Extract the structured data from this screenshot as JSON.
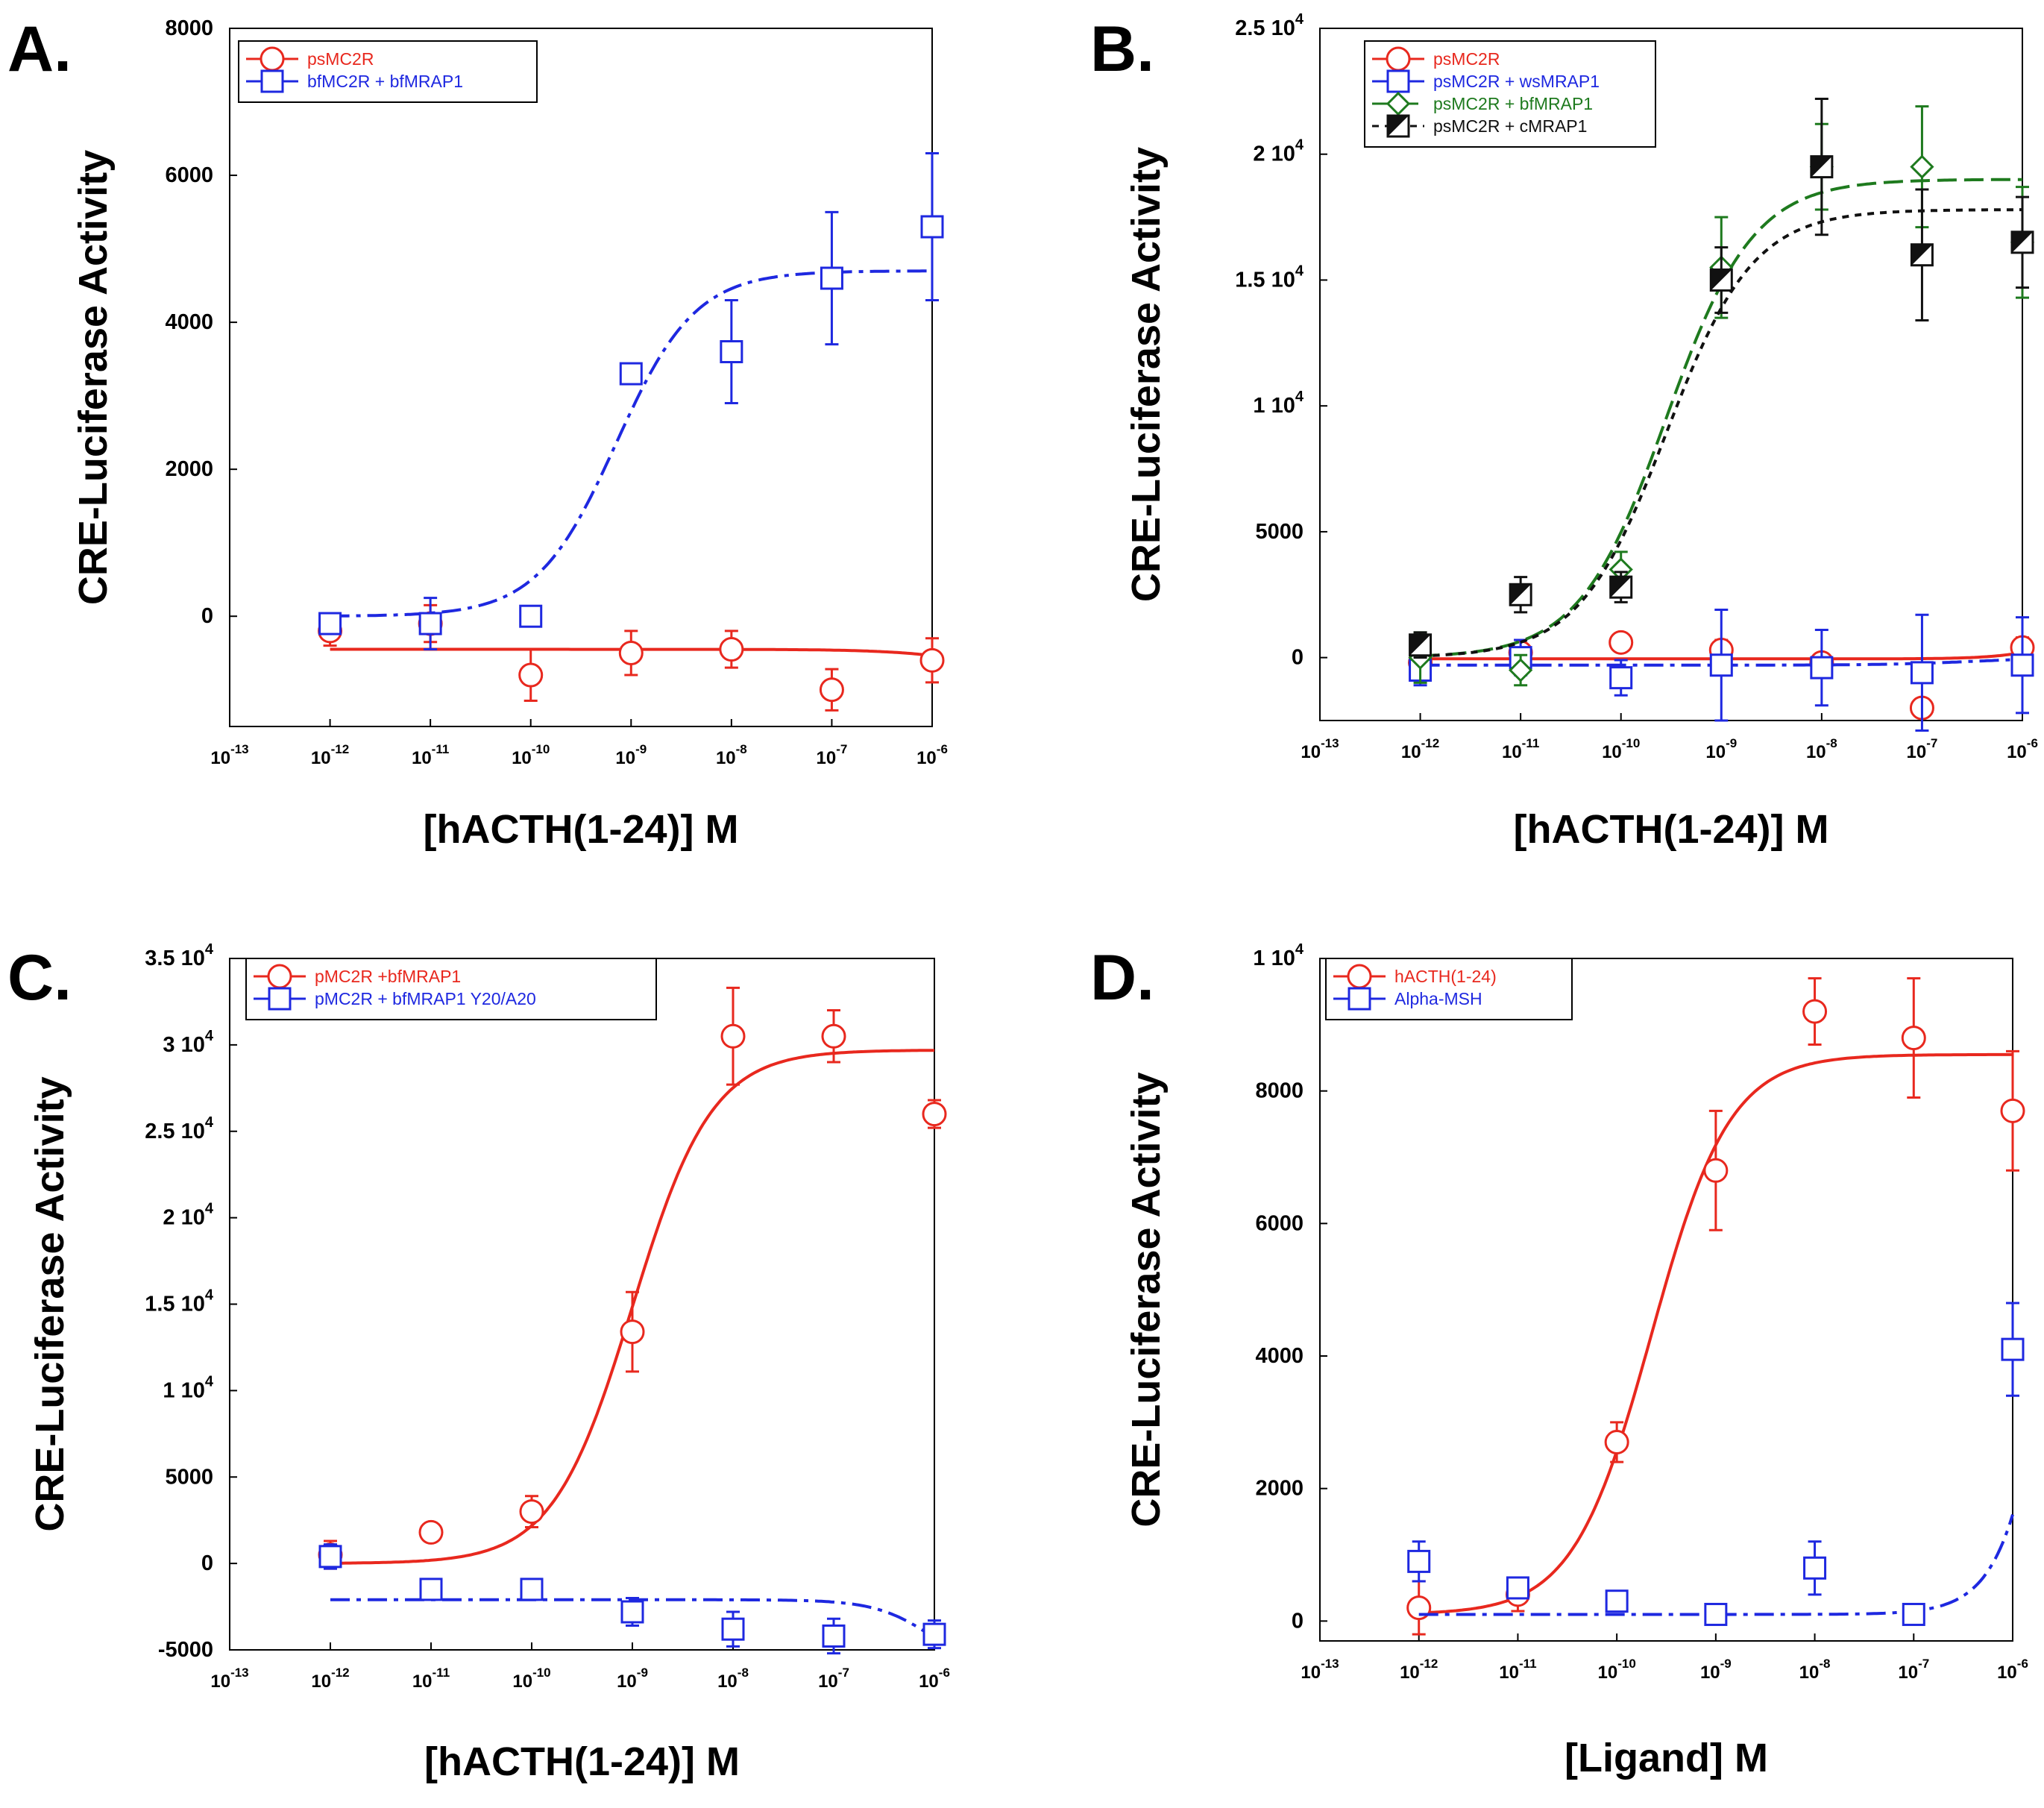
{
  "chart_data": [
    {
      "type": "scatter",
      "panel_label": "A.",
      "xlabel": "[hACTH(1-24)] M",
      "ylabel": "CRE-Luciferase Activity",
      "xlim": [
        -13,
        -6
      ],
      "ylim": [
        -1500,
        8000
      ],
      "x_ticks": [
        -13,
        -12,
        -11,
        -10,
        -9,
        -8,
        -7,
        -6
      ],
      "y_ticks": [
        {
          "v": 0,
          "label": "0"
        },
        {
          "v": 2000,
          "label": "2000"
        },
        {
          "v": 4000,
          "label": "4000"
        },
        {
          "v": 6000,
          "label": "6000"
        },
        {
          "v": 8000,
          "label": "8000"
        }
      ],
      "series": [
        {
          "name": "psMC2R",
          "color": "#e8281e",
          "marker": "circle",
          "dash": "solid",
          "x": [
            -12,
            -11,
            -10,
            -9,
            -8,
            -7,
            -6
          ],
          "y": [
            -200,
            -100,
            -800,
            -500,
            -450,
            -1000,
            -600
          ],
          "err": [
            200,
            250,
            350,
            300,
            250,
            280,
            300
          ],
          "fit": {
            "bottom": -450,
            "top": -800,
            "logec50": -5.5,
            "hill": 1
          }
        },
        {
          "name": "bfMC2R + bfMRAP1",
          "color": "#1e28e0",
          "marker": "square",
          "dash": "dashdot",
          "x": [
            -12,
            -11,
            -10,
            -9,
            -8,
            -7,
            -6
          ],
          "y": [
            -100,
            -100,
            0,
            3300,
            3600,
            4600,
            5300
          ],
          "err": [
            80,
            350,
            60,
            100,
            700,
            900,
            1000
          ],
          "fit": {
            "bottom": 0,
            "top": 4700,
            "logec50": -9.15,
            "hill": 1.1
          }
        }
      ],
      "legend_position": "top-left"
    },
    {
      "type": "scatter",
      "panel_label": "B.",
      "xlabel": "[hACTH(1-24)] M",
      "ylabel": "CRE-Luciferase Activity",
      "xlim": [
        -13,
        -6
      ],
      "ylim": [
        -2500,
        25000
      ],
      "x_ticks": [
        -13,
        -12,
        -11,
        -10,
        -9,
        -8,
        -7,
        -6
      ],
      "y_ticks": [
        {
          "v": 0,
          "label": "0"
        },
        {
          "v": 5000,
          "label": "5000"
        },
        {
          "v": 10000,
          "label": "1 10"
        },
        {
          "v": 15000,
          "label": "1.5 10"
        },
        {
          "v": 20000,
          "label": "2 10"
        },
        {
          "v": 25000,
          "label": "2.5 10"
        }
      ],
      "series": [
        {
          "name": "psMC2R",
          "color": "#e8281e",
          "marker": "circle",
          "dash": "solid",
          "x": [
            -12,
            -11,
            -10,
            -9,
            -8,
            -7,
            -6
          ],
          "y": [
            -200,
            200,
            600,
            300,
            -200,
            -2000,
            400
          ],
          "err": [
            300,
            500,
            300,
            400,
            300,
            300,
            400
          ],
          "fit": {
            "bottom": -50,
            "top": 1200,
            "logec50": -5.6,
            "hill": 1.5
          }
        },
        {
          "name": "psMC2R + wsMRAP1",
          "color": "#1e28e0",
          "marker": "square",
          "dash": "dashdot",
          "x": [
            -12,
            -11,
            -10,
            -9,
            -8,
            -7,
            -6
          ],
          "y": [
            -500,
            0,
            -800,
            -300,
            -400,
            -600,
            -300
          ],
          "err": [
            600,
            700,
            700,
            2200,
            1500,
            2300,
            1900
          ],
          "fit": {
            "bottom": -300,
            "top": 0,
            "logec50": -6.5,
            "hill": 1
          }
        },
        {
          "name": "psMC2R + bfMRAP1",
          "color": "#1e7a1e",
          "marker": "diamond",
          "dash": "dash",
          "x": [
            -12,
            -11,
            -10,
            -9,
            -8,
            -7,
            -6
          ],
          "y": [
            0,
            -500,
            3500,
            15500,
            19500,
            19500,
            16500
          ],
          "err": [
            1000,
            600,
            700,
            2000,
            1700,
            2400,
            2200
          ],
          "fit": {
            "bottom": 0,
            "top": 19000,
            "logec50": -9.55,
            "hill": 1
          }
        },
        {
          "name": "psMC2R + cMRAP1",
          "color": "#111111",
          "marker": "halfsquare",
          "dash": "dot",
          "x": [
            -12,
            -11,
            -10,
            -9,
            -8,
            -7,
            -6
          ],
          "y": [
            500,
            2500,
            2800,
            15000,
            19500,
            16000,
            16500
          ],
          "err": [
            500,
            700,
            600,
            1300,
            2700,
            2600,
            1800
          ],
          "fit": {
            "bottom": 0,
            "top": 17800,
            "logec50": -9.55,
            "hill": 1
          }
        }
      ],
      "legend_position": "top-left"
    },
    {
      "type": "scatter",
      "panel_label": "C.",
      "xlabel": "[hACTH(1-24)] M",
      "ylabel": "CRE-Luciferase Activity",
      "xlim": [
        -13,
        -6
      ],
      "ylim": [
        -5000,
        35000
      ],
      "x_ticks": [
        -13,
        -12,
        -11,
        -10,
        -9,
        -8,
        -7,
        -6
      ],
      "y_ticks": [
        {
          "v": -5000,
          "label": "-5000"
        },
        {
          "v": 0,
          "label": "0"
        },
        {
          "v": 5000,
          "label": "5000"
        },
        {
          "v": 10000,
          "label": "1 10"
        },
        {
          "v": 15000,
          "label": "1.5 10"
        },
        {
          "v": 20000,
          "label": "2 10"
        },
        {
          "v": 25000,
          "label": "2.5 10"
        },
        {
          "v": 30000,
          "label": "3 10"
        },
        {
          "v": 35000,
          "label": "3.5 10"
        }
      ],
      "series": [
        {
          "name": "pMC2R +bfMRAP1",
          "color": "#e8281e",
          "marker": "circle",
          "dash": "solid",
          "x": [
            -12,
            -11,
            -10,
            -9,
            -8,
            -7,
            -6
          ],
          "y": [
            500,
            1800,
            3000,
            13400,
            30500,
            30500,
            26000
          ],
          "err": [
            800,
            500,
            900,
            2300,
            2800,
            1500,
            800
          ],
          "fit": {
            "bottom": 0,
            "top": 29700,
            "logec50": -9.0,
            "hill": 1.1
          }
        },
        {
          "name": "pMC2R + bfMRAP1 Y20/A20",
          "color": "#1e28e0",
          "marker": "square",
          "dash": "dashdot",
          "x": [
            -12,
            -11,
            -10,
            -9,
            -8,
            -7,
            -6
          ],
          "y": [
            400,
            -1500,
            -1500,
            -2800,
            -3800,
            -4200,
            -4100
          ],
          "err": [
            700,
            600,
            600,
            800,
            1000,
            1000,
            800
          ],
          "fit": {
            "bottom": -2100,
            "top": -6500,
            "logec50": -6.0,
            "hill": 1.5
          }
        }
      ],
      "legend_position": "top-left"
    },
    {
      "type": "scatter",
      "panel_label": "D.",
      "xlabel": "[Ligand] M",
      "ylabel": "CRE-Luciferase Activity",
      "xlim": [
        -13,
        -6
      ],
      "ylim": [
        -300,
        10000
      ],
      "x_ticks": [
        -13,
        -12,
        -11,
        -10,
        -9,
        -8,
        -7,
        -6
      ],
      "y_ticks": [
        {
          "v": 0,
          "label": "0"
        },
        {
          "v": 2000,
          "label": "2000"
        },
        {
          "v": 4000,
          "label": "4000"
        },
        {
          "v": 6000,
          "label": "6000"
        },
        {
          "v": 8000,
          "label": "8000"
        },
        {
          "v": 10000,
          "label": "1 10"
        }
      ],
      "series": [
        {
          "name": "hACTH(1-24)",
          "color": "#e8281e",
          "marker": "circle",
          "dash": "solid",
          "x": [
            -12,
            -11,
            -10,
            -9,
            -8,
            -7,
            -6
          ],
          "y": [
            200,
            400,
            2700,
            6800,
            9200,
            8800,
            7700
          ],
          "err": [
            400,
            250,
            300,
            900,
            500,
            900,
            900
          ],
          "fit": {
            "bottom": 100,
            "top": 8550,
            "logec50": -9.65,
            "hill": 1.1
          }
        },
        {
          "name": "Alpha-MSH",
          "color": "#1e28e0",
          "marker": "square",
          "dash": "dashdot",
          "x": [
            -12,
            -11,
            -10,
            -9,
            -8,
            -7,
            -6
          ],
          "y": [
            900,
            500,
            300,
            100,
            800,
            100,
            4100
          ],
          "err": [
            300,
            150,
            150,
            50,
            400,
            150,
            700
          ],
          "fit": {
            "bottom": 100,
            "top": 30000,
            "logec50": -5.15,
            "hill": 1.5
          }
        }
      ],
      "legend_position": "top-left"
    }
  ]
}
